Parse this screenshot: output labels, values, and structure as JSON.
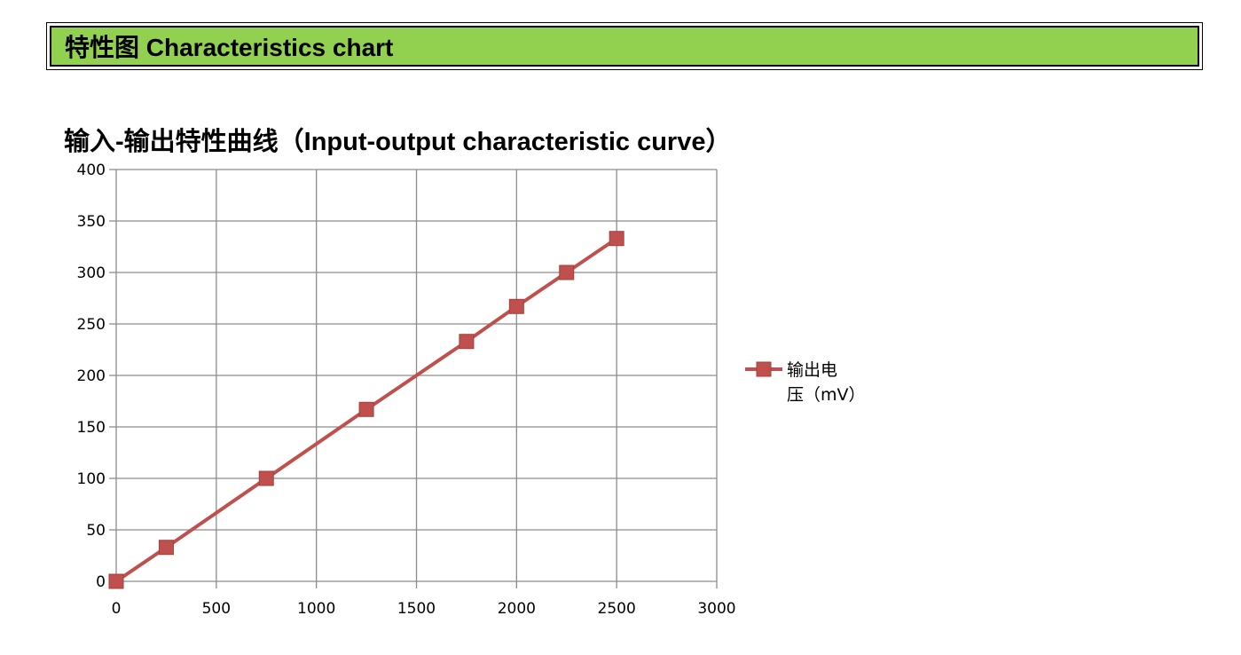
{
  "header": {
    "title": "特性图 Characteristics chart"
  },
  "section": {
    "title": "输入-输出特性曲线（Input-output characteristic curve）"
  },
  "chart_data": {
    "type": "line",
    "title": "",
    "xlabel": "",
    "ylabel": "",
    "xlim": [
      0,
      3000
    ],
    "ylim": [
      0,
      400
    ],
    "x_ticks": [
      0,
      500,
      1000,
      1500,
      2000,
      2500,
      3000
    ],
    "y_ticks": [
      0,
      50,
      100,
      150,
      200,
      250,
      300,
      350,
      400
    ],
    "grid": true,
    "legend_position": "right",
    "series": [
      {
        "name": "输出电压（mV）",
        "legend_lines": [
          "输出电",
          "压（mV）"
        ],
        "color": "#c0504d",
        "marker": "square",
        "x": [
          0,
          250,
          750,
          1250,
          1750,
          2000,
          2250,
          2500
        ],
        "y": [
          0,
          33,
          100,
          167,
          233,
          267,
          300,
          333
        ]
      }
    ]
  }
}
